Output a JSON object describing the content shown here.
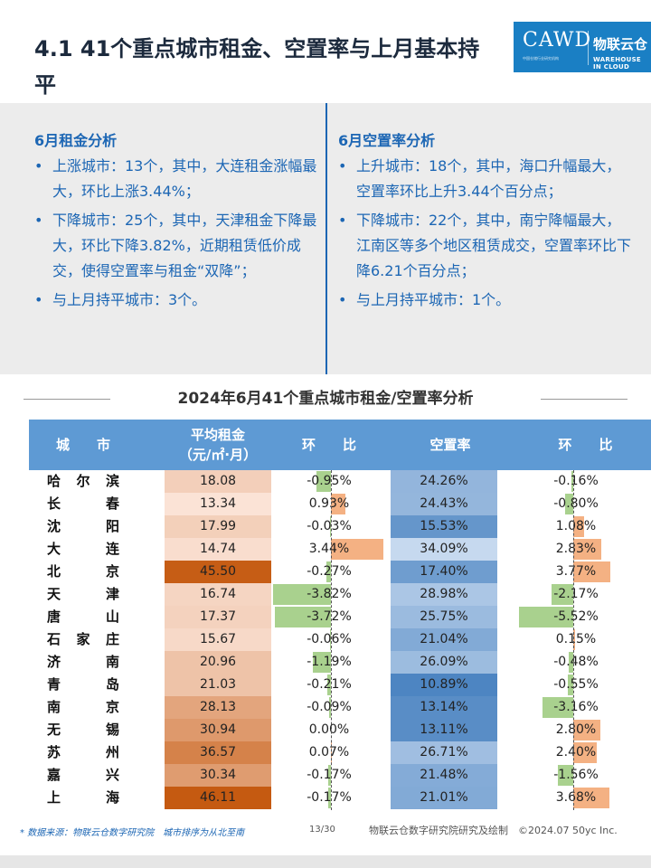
{
  "title": "4.1 41个重点城市租金、空置率与上月基本持平",
  "logo": {
    "cawd": "CAWD",
    "cawd_sub": "中国仓储行业研究机构",
    "wl": "物联云仓",
    "wl_sub": "WAREHOUSE IN CLOUD"
  },
  "analysis": {
    "rent": {
      "heading": "6月租金分析",
      "bullets": [
        "上涨城市：13个，其中，大连租金涨幅最大，环比上涨3.44%；",
        "下降城市：25个，其中，天津租金下降最大，环比下降3.82%，近期租赁低价成交，使得空置率与租金“双降”；",
        "与上月持平城市：3个。"
      ]
    },
    "vacancy": {
      "heading": "6月空置率分析",
      "bullets": [
        "上升城市：18个，其中，海口升幅最大，空置率环比上升3.44个百分点；",
        "下降城市：22个，其中，南宁降幅最大，江南区等多个地区租赁成交，空置率环比下降6.21个百分点；",
        "与上月持平城市：1个。"
      ]
    }
  },
  "table": {
    "title": "2024年6月41个重点城市租金/空置率分析",
    "headers": {
      "city": "城　　市",
      "rent": "平均租金\n（元/㎡·月）",
      "rent_mom": "环　　比",
      "vacancy": "空置率",
      "vac_mom": "环　　比"
    },
    "colors": {
      "rent_scale": [
        "#fbe3d6",
        "#c55a11"
      ],
      "vac_scale": [
        "#c6d9ef",
        "#4d85c2"
      ],
      "pos_bar": "#f4b183",
      "neg_bar": "#a9d18e",
      "header_bg": "#5e9ad4"
    },
    "rows": [
      {
        "city": "哈尔滨",
        "rent": "18.08",
        "rent_mom": "-0.95%",
        "vacancy": "24.26%",
        "vac_mom": "-0.16%"
      },
      {
        "city": "长春",
        "rent": "13.34",
        "rent_mom": "0.93%",
        "vacancy": "24.43%",
        "vac_mom": "-0.80%"
      },
      {
        "city": "沈阳",
        "rent": "17.99",
        "rent_mom": "-0.03%",
        "vacancy": "15.53%",
        "vac_mom": "1.08%"
      },
      {
        "city": "大连",
        "rent": "14.74",
        "rent_mom": "3.44%",
        "vacancy": "34.09%",
        "vac_mom": "2.83%"
      },
      {
        "city": "北京",
        "rent": "45.50",
        "rent_mom": "-0.27%",
        "vacancy": "17.40%",
        "vac_mom": "3.77%"
      },
      {
        "city": "天津",
        "rent": "16.74",
        "rent_mom": "-3.82%",
        "vacancy": "28.98%",
        "vac_mom": "-2.17%"
      },
      {
        "city": "唐山",
        "rent": "17.37",
        "rent_mom": "-3.72%",
        "vacancy": "25.75%",
        "vac_mom": "-5.52%"
      },
      {
        "city": "石家庄",
        "rent": "15.67",
        "rent_mom": "-0.06%",
        "vacancy": "21.04%",
        "vac_mom": "0.15%"
      },
      {
        "city": "济南",
        "rent": "20.96",
        "rent_mom": "-1.19%",
        "vacancy": "26.09%",
        "vac_mom": "-0.48%"
      },
      {
        "city": "青岛",
        "rent": "21.03",
        "rent_mom": "-0.21%",
        "vacancy": "10.89%",
        "vac_mom": "-0.55%"
      },
      {
        "city": "南京",
        "rent": "28.13",
        "rent_mom": "-0.09%",
        "vacancy": "13.14%",
        "vac_mom": "-3.16%"
      },
      {
        "city": "无锡",
        "rent": "30.94",
        "rent_mom": "0.00%",
        "vacancy": "13.11%",
        "vac_mom": "2.80%"
      },
      {
        "city": "苏州",
        "rent": "36.57",
        "rent_mom": "0.07%",
        "vacancy": "26.71%",
        "vac_mom": "2.40%"
      },
      {
        "city": "嘉兴",
        "rent": "30.34",
        "rent_mom": "-0.17%",
        "vacancy": "21.48%",
        "vac_mom": "-1.56%"
      },
      {
        "city": "上海",
        "rent": "46.11",
        "rent_mom": "-0.17%",
        "vacancy": "21.01%",
        "vac_mom": "3.68%"
      }
    ]
  },
  "footer": {
    "source": "* 数据来源：物联云仓数字研究院　城市排序为从北至南",
    "page": "13/30",
    "credit": "物联云仓数字研究院研究及绘制　©2024.07 50yc Inc."
  }
}
